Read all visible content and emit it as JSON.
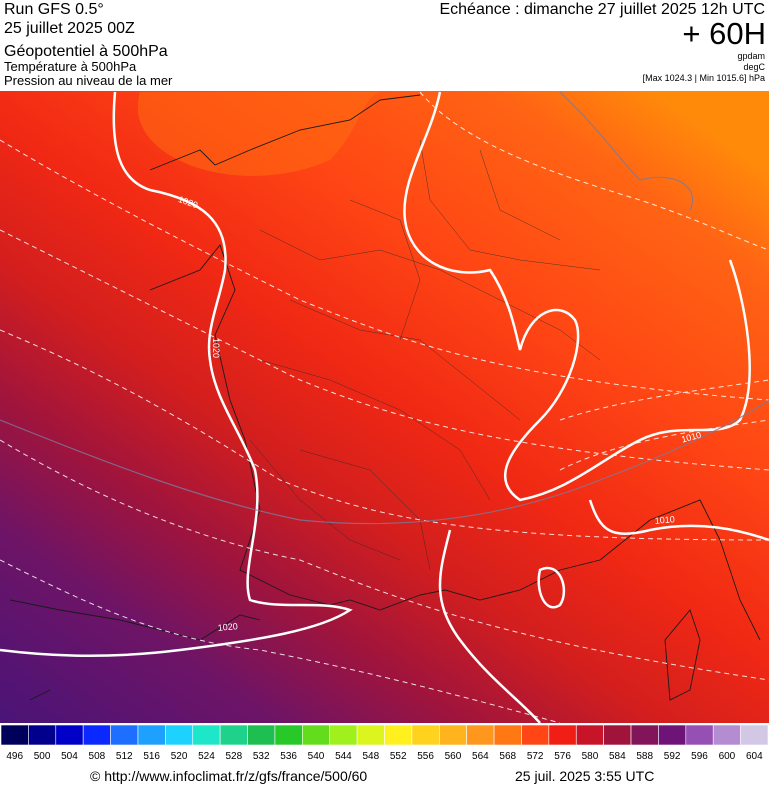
{
  "header": {
    "run": "Run GFS 0.5°",
    "run_date": "25 juillet 2025 00Z",
    "fields": [
      "Géopotentiel à 500hPa",
      "Température à 500hPa",
      "Pression au niveau de la mer"
    ],
    "valid": "Echéance : dimanche 27 juillet 2025 12h UTC",
    "lead": "+ 60H",
    "units": [
      "gpdam",
      "degC",
      "[Max 1024.3 | Min 1015.6] hPa"
    ]
  },
  "map": {
    "contour_labels": [
      "1020",
      "1020",
      "1010",
      "1010",
      "1020"
    ]
  },
  "colorbar": {
    "labels": [
      496,
      500,
      504,
      508,
      512,
      516,
      520,
      524,
      528,
      532,
      536,
      540,
      544,
      548,
      552,
      556,
      560,
      564,
      568,
      572,
      576,
      580,
      584,
      588,
      592,
      596,
      600,
      604
    ],
    "colors": [
      "#00005a",
      "#00008c",
      "#0000c8",
      "#0a28ff",
      "#1e6eff",
      "#1ea0ff",
      "#1ed2ff",
      "#1ee6c8",
      "#1ed28c",
      "#1ebe50",
      "#28c828",
      "#64dc1e",
      "#a0f01e",
      "#dcf51e",
      "#fff01e",
      "#ffd21e",
      "#ffb41e",
      "#ff961e",
      "#ff7814",
      "#ff4614",
      "#f01e14",
      "#c81428",
      "#a0143c",
      "#82145a",
      "#6e1478",
      "#9650b4",
      "#b48cd2",
      "#d2c8e6"
    ]
  },
  "footer": {
    "source": "© http://www.infoclimat.fr/z/gfs/france/500/60",
    "generated": "25 juil. 2025  3:55 UTC"
  }
}
